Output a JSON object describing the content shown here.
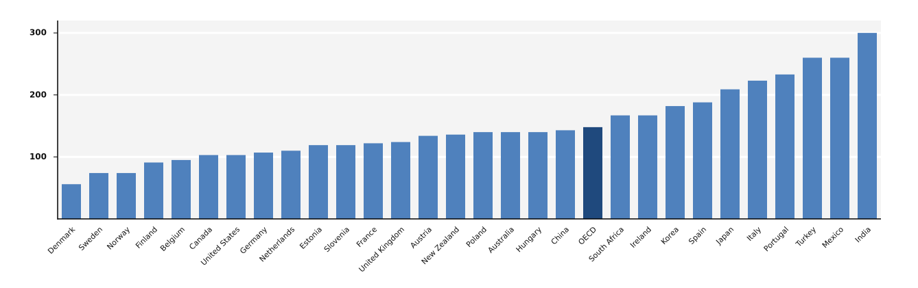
{
  "chart_data": {
    "type": "bar",
    "categories": [
      "Denmark",
      "Sweden",
      "Norway",
      "Finland",
      "Belgium",
      "Canada",
      "United States",
      "Germany",
      "Netherlands",
      "Estonia",
      "Slovenia",
      "France",
      "United Kingdom",
      "Austria",
      "New Zealand",
      "Poland",
      "Australia",
      "Hungary",
      "China",
      "OECD",
      "South Africa",
      "Ireland",
      "Korea",
      "Spain",
      "Japan",
      "Italy",
      "Portugal",
      "Turkey",
      "Mexico",
      "India"
    ],
    "values": [
      56,
      74,
      74,
      91,
      95,
      103,
      103,
      107,
      110,
      119,
      119,
      122,
      124,
      134,
      136,
      140,
      140,
      140,
      143,
      148,
      167,
      167,
      182,
      188,
      209,
      223,
      233,
      260,
      260,
      300
    ],
    "colors": [
      "#4f81bd",
      "#4f81bd",
      "#4f81bd",
      "#4f81bd",
      "#4f81bd",
      "#4f81bd",
      "#4f81bd",
      "#4f81bd",
      "#4f81bd",
      "#4f81bd",
      "#4f81bd",
      "#4f81bd",
      "#4f81bd",
      "#4f81bd",
      "#4f81bd",
      "#4f81bd",
      "#4f81bd",
      "#4f81bd",
      "#4f81bd",
      "#1f497d",
      "#4f81bd",
      "#4f81bd",
      "#4f81bd",
      "#4f81bd",
      "#4f81bd",
      "#4f81bd",
      "#4f81bd",
      "#4f81bd",
      "#4f81bd",
      "#4f81bd"
    ],
    "ylim": [
      0,
      320
    ],
    "yticks": [
      100,
      200,
      300
    ],
    "grid": true
  }
}
